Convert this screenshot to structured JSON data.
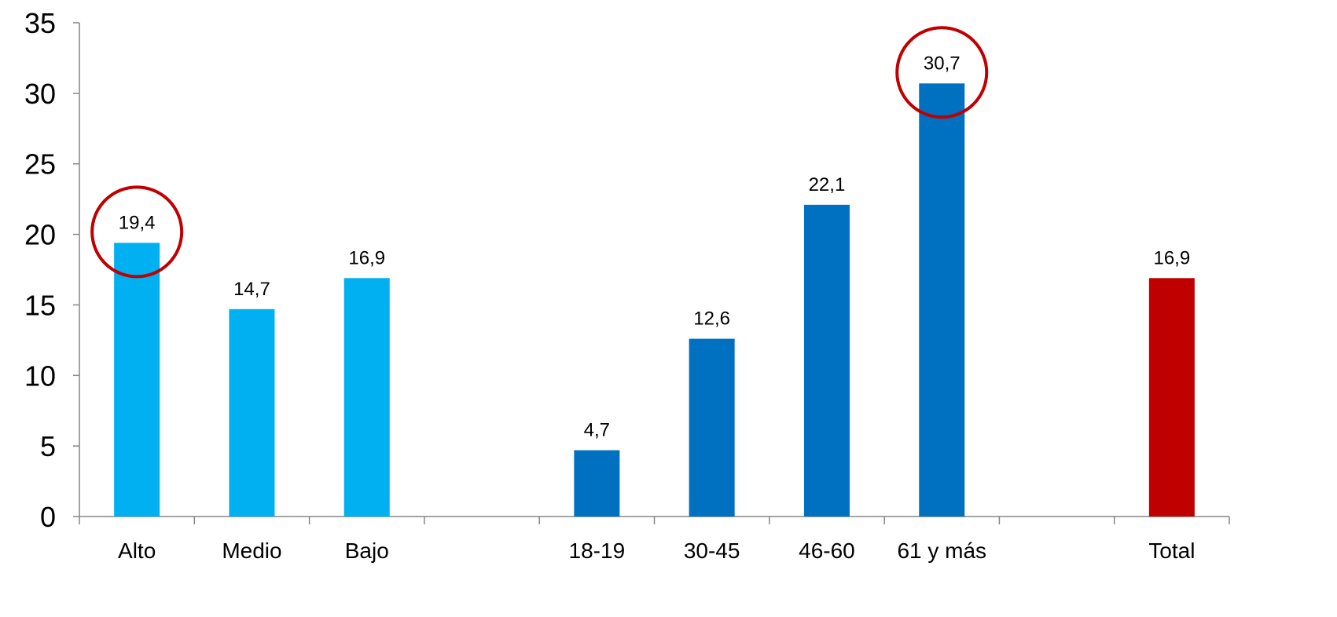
{
  "chart_data": {
    "type": "bar",
    "categories": [
      "Alto",
      "Medio",
      "Bajo",
      "",
      "18-19",
      "30-45",
      "46-60",
      "61 y más",
      "",
      "Total"
    ],
    "values": [
      19.4,
      14.7,
      16.9,
      null,
      4.7,
      12.6,
      22.1,
      30.7,
      null,
      16.9
    ],
    "value_labels": [
      "19,4",
      "14,7",
      "16,9",
      "",
      "4,7",
      "12,6",
      "22,1",
      "30,7",
      "",
      "16,9"
    ],
    "bar_colors": [
      "#00b0f0",
      "#00b0f0",
      "#00b0f0",
      "",
      "#0070c0",
      "#0070c0",
      "#0070c0",
      "#0070c0",
      "",
      "#c00000"
    ],
    "highlighted": [
      "Alto",
      "61 y más"
    ],
    "highlight_color": "#c00000",
    "ylim": [
      0,
      35
    ],
    "yticks": [
      0,
      5,
      10,
      15,
      20,
      25,
      30,
      35
    ],
    "title": "",
    "xlabel": "",
    "ylabel": "",
    "grid": false,
    "legend": "none"
  }
}
